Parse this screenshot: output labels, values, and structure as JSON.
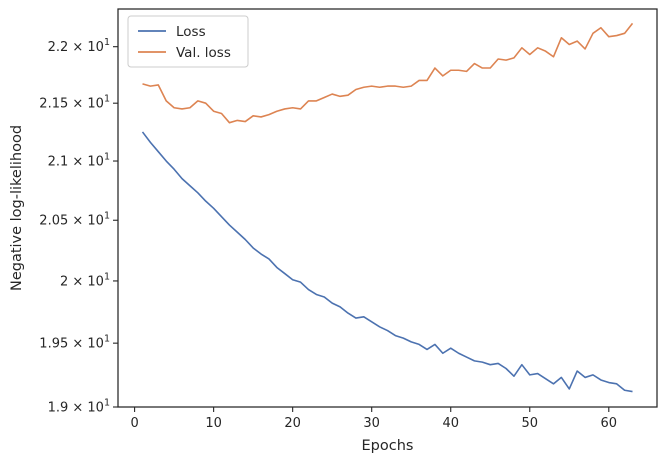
{
  "chart_data": {
    "type": "line",
    "xlabel": "Epochs",
    "ylabel": "Negative log-likelihood",
    "xlim": [
      -2.1,
      66.1
    ],
    "ylim": [
      19.0,
      22.34
    ],
    "yscale": "log",
    "grid": false,
    "legend_position": "top-left",
    "x_ticks": [
      0,
      10,
      20,
      30,
      40,
      50,
      60
    ],
    "y_ticks": [
      {
        "value": 19.0,
        "mantissa": "1.9",
        "exp": "1"
      },
      {
        "value": 19.5,
        "mantissa": "1.95",
        "exp": "1"
      },
      {
        "value": 20.0,
        "mantissa": "2",
        "exp": "1"
      },
      {
        "value": 20.5,
        "mantissa": "2.05",
        "exp": "1"
      },
      {
        "value": 21.0,
        "mantissa": "2.1",
        "exp": "1"
      },
      {
        "value": 21.5,
        "mantissa": "2.15",
        "exp": "1"
      },
      {
        "value": 22.0,
        "mantissa": "2.2",
        "exp": "1"
      }
    ],
    "x": [
      1,
      2,
      3,
      4,
      5,
      6,
      7,
      8,
      9,
      10,
      11,
      12,
      13,
      14,
      15,
      16,
      17,
      18,
      19,
      20,
      21,
      22,
      23,
      24,
      25,
      26,
      27,
      28,
      29,
      30,
      31,
      32,
      33,
      34,
      35,
      36,
      37,
      38,
      39,
      40,
      41,
      42,
      43,
      44,
      45,
      46,
      47,
      48,
      49,
      50,
      51,
      52,
      53,
      54,
      55,
      56,
      57,
      58,
      59,
      60,
      61,
      62,
      63
    ],
    "series": [
      {
        "name": "Loss",
        "color": "#4c72b0",
        "values": [
          21.25,
          21.16,
          21.08,
          21.0,
          20.93,
          20.85,
          20.79,
          20.73,
          20.66,
          20.6,
          20.53,
          20.46,
          20.4,
          20.34,
          20.27,
          20.22,
          20.18,
          20.11,
          20.06,
          20.01,
          19.99,
          19.93,
          19.89,
          19.87,
          19.82,
          19.79,
          19.74,
          19.7,
          19.71,
          19.67,
          19.63,
          19.6,
          19.56,
          19.54,
          19.51,
          19.49,
          19.45,
          19.49,
          19.42,
          19.46,
          19.42,
          19.39,
          19.36,
          19.35,
          19.33,
          19.34,
          19.3,
          19.24,
          19.33,
          19.25,
          19.26,
          19.22,
          19.18,
          19.23,
          19.14,
          19.28,
          19.23,
          19.25,
          19.21,
          19.19,
          19.18,
          19.13,
          19.12
        ]
      },
      {
        "name": "Val. loss",
        "color": "#dd8452",
        "values": [
          21.67,
          21.65,
          21.66,
          21.52,
          21.46,
          21.45,
          21.46,
          21.52,
          21.5,
          21.43,
          21.41,
          21.33,
          21.35,
          21.34,
          21.39,
          21.38,
          21.4,
          21.43,
          21.45,
          21.46,
          21.45,
          21.52,
          21.52,
          21.55,
          21.58,
          21.56,
          21.57,
          21.62,
          21.64,
          21.65,
          21.64,
          21.65,
          21.65,
          21.64,
          21.65,
          21.7,
          21.7,
          21.81,
          21.74,
          21.79,
          21.79,
          21.78,
          21.85,
          21.81,
          21.81,
          21.89,
          21.88,
          21.9,
          21.99,
          21.93,
          21.99,
          21.96,
          21.91,
          22.08,
          22.02,
          22.05,
          21.98,
          22.12,
          22.17,
          22.09,
          22.1,
          22.12,
          22.21
        ]
      }
    ]
  }
}
